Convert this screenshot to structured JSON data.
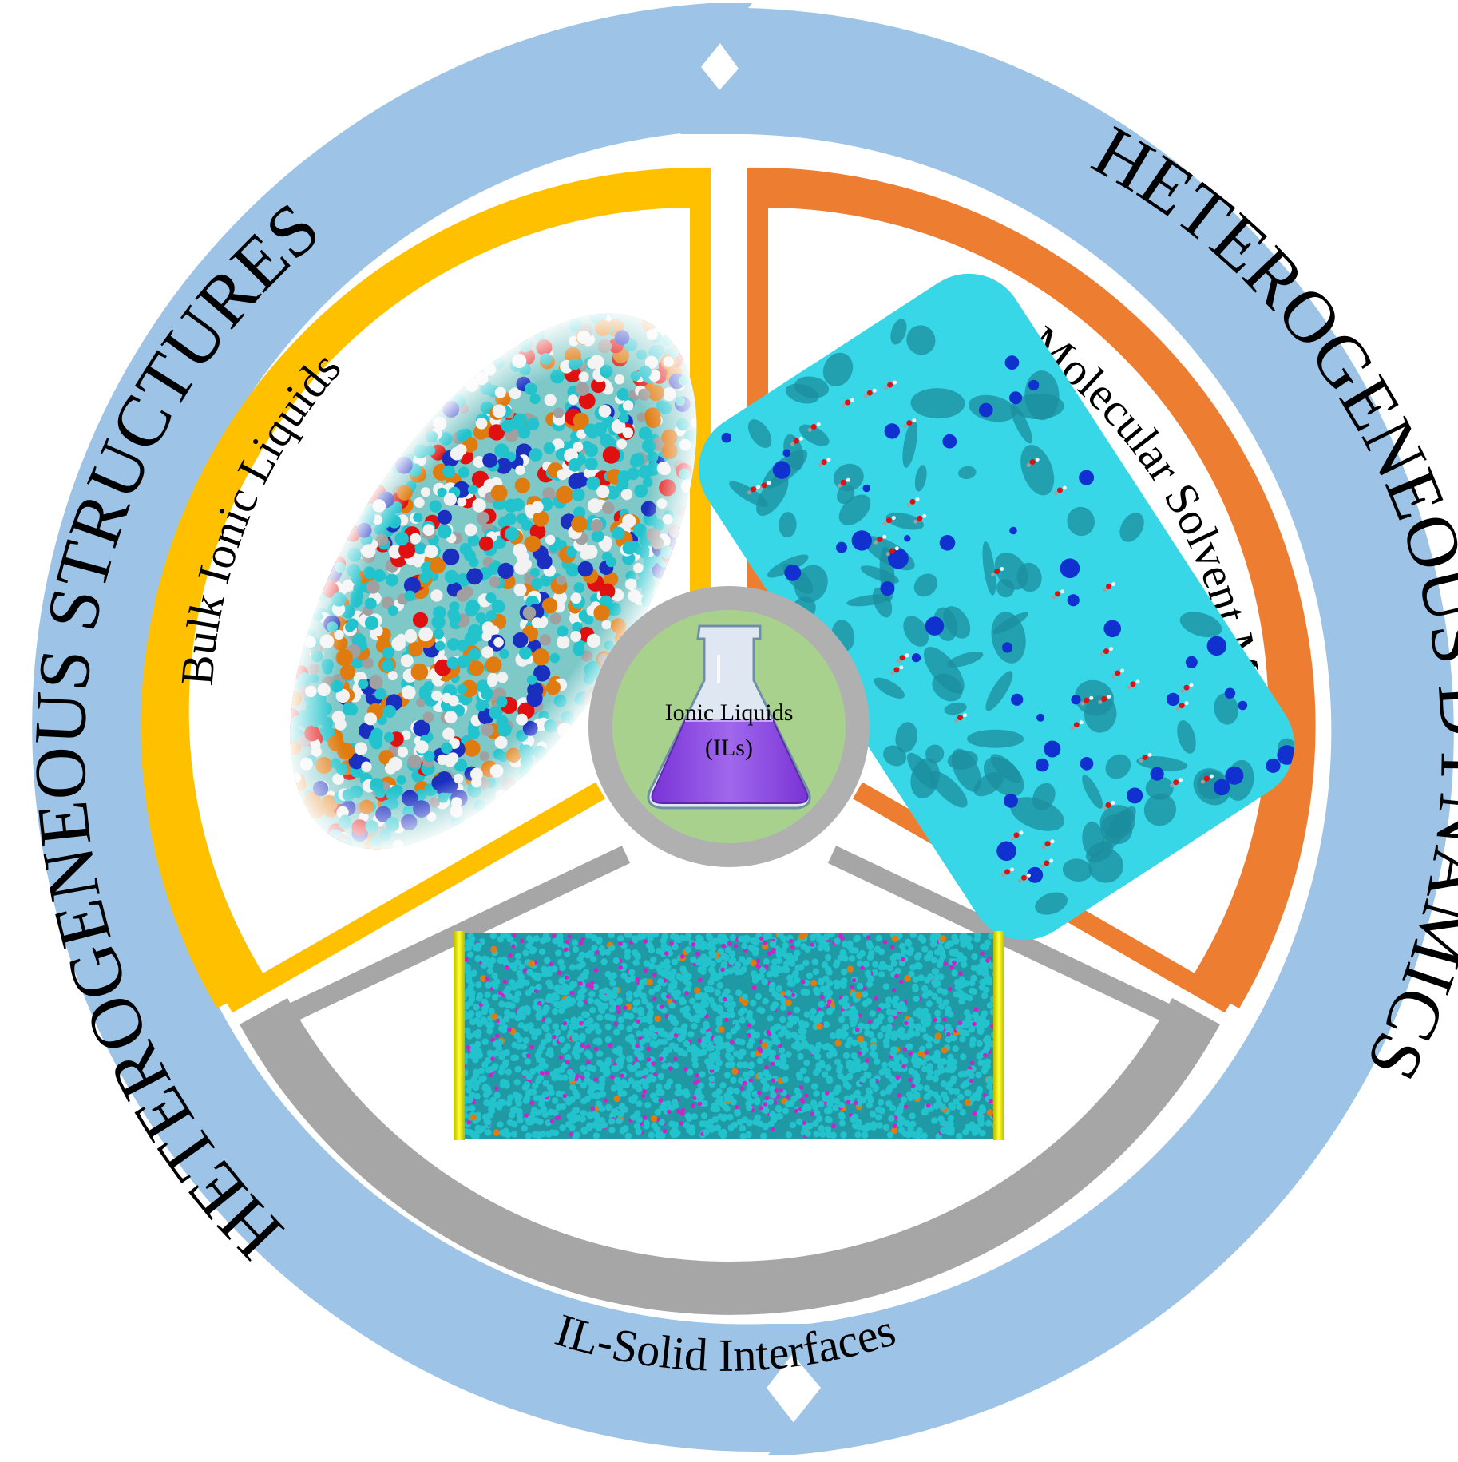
{
  "outer_ring": {
    "left_label": "HETEROGENEOUS STRUCTURES",
    "right_label": "HETEROGENEOUS DYNAMICS",
    "color": "#9dc3e6"
  },
  "center": {
    "line1": "Ionic Liquids",
    "line2": "(ILs)",
    "circle_color": "#a9d18e",
    "ring_color": "#b0b0b0",
    "liquid_color": "#8e4ee0",
    "icon": "erlenmeyer-flask-icon"
  },
  "segments": [
    {
      "label": "Bulk Ionic Liquids",
      "color": "#ffc000",
      "image": "molecular-sphere-packing-icon"
    },
    {
      "label": "IL-Molecular Solvent Mixtures",
      "color": "#ed7d31",
      "image": "molecular-surface-icon"
    },
    {
      "label": "IL-Solid Interfaces",
      "color": "#a6a6a6",
      "image": "confined-il-slab-icon"
    }
  ],
  "palette": {
    "atom_cyan": "#22c3cc",
    "atom_white": "#f2f2f2",
    "atom_orange": "#e07b10",
    "atom_red": "#e01010",
    "atom_blue": "#1a2ec0",
    "atom_gray": "#a0a0a0",
    "surface_cyan": "#38d7e8",
    "surface_dark": "#1b8e9e",
    "surface_blue": "#1030d0",
    "wall_yellow": "#f4f400",
    "bond_magenta": "#cc22cc"
  }
}
